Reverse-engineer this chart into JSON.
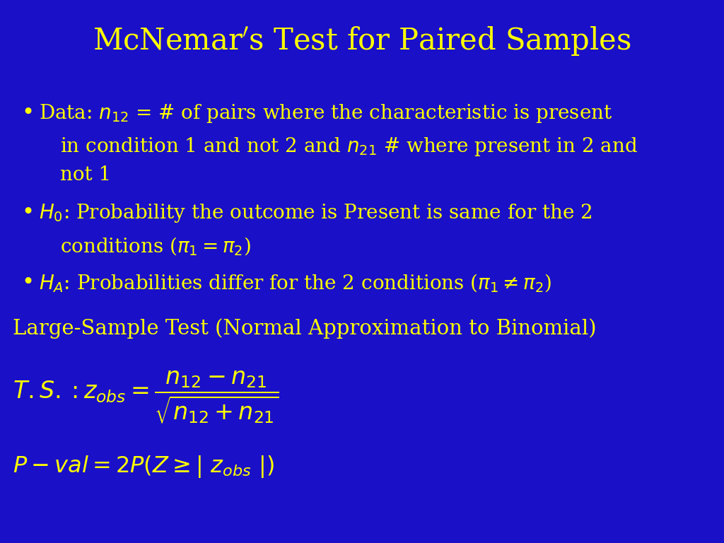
{
  "title": "McNemar’s Test for Paired Samples",
  "background_color": "#1a10c8",
  "text_color": "#ffff00",
  "title_fontsize": 30,
  "body_fontsize": 20,
  "formula_fontsize": 22,
  "large_sample_fontsize": 21,
  "figsize": [
    10.24,
    7.68
  ],
  "dpi": 100
}
